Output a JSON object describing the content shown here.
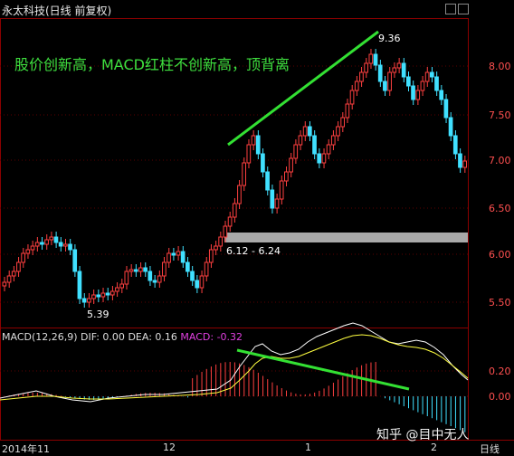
{
  "header": {
    "title": "永太科技(日线 前复权)",
    "annotation": "股价创新高，MACD红柱不创新高，顶背离"
  },
  "macd": {
    "label": "MACD(12,26,9)",
    "dif_label": "DIF: 0.00",
    "dea_label": "DEA: 0.16",
    "macd_label": "MACD: -0.32",
    "axis_ticks": [
      "0.20",
      "0.00"
    ]
  },
  "price": {
    "axis_ticks": [
      "8.00",
      "7.50",
      "7.00",
      "6.50",
      "6.00",
      "5.50"
    ],
    "high_label": "9.36",
    "low_label": "5.39",
    "gap_label": "6.12 - 6.24"
  },
  "timeline": {
    "labels": [
      "2014年11",
      "12",
      "1",
      "2",
      "日线"
    ]
  },
  "watermark": "知乎 @目中无人",
  "colors": {
    "up": "#ff4040",
    "down": "#40e0ff",
    "trend": "#33e033",
    "gap": "#a9a9a9",
    "dif": "#ffffff",
    "dea": "#ffff40"
  }
}
